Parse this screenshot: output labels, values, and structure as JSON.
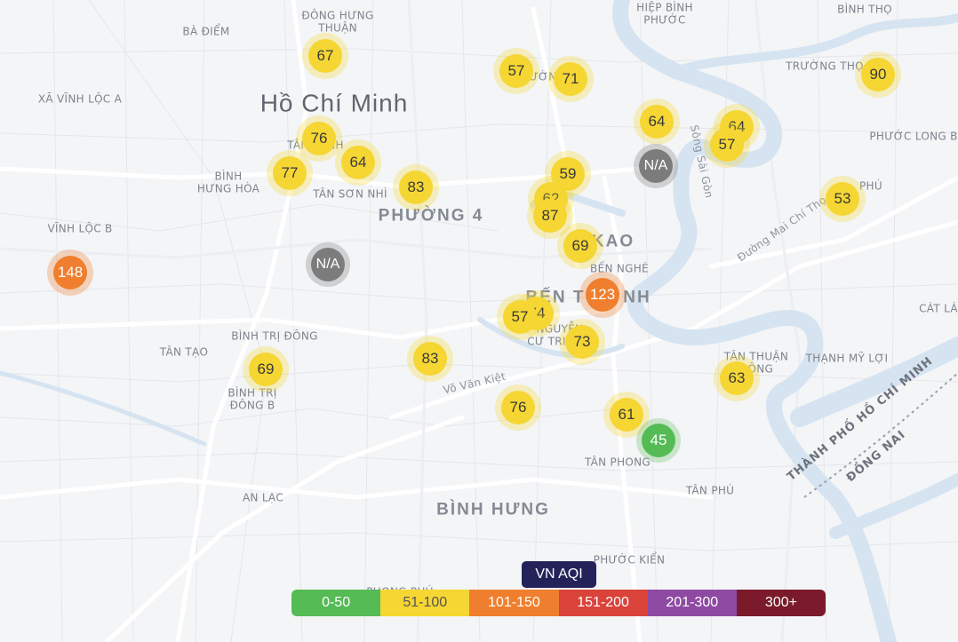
{
  "colors": {
    "good": "#55bb55",
    "moderate": "#f5d633",
    "sensitive": "#ef7f2e",
    "unhealthy": "#d9433a",
    "very_unhealthy": "#8e4aa3",
    "hazardous": "#7a1a2a",
    "na": "#7c7c7c",
    "water": "#d6e4f1",
    "legend_title_bg": "#23235a"
  },
  "place_labels": [
    {
      "text": "ĐÔNG HƯNG",
      "style": "small"
    },
    {
      "text": "THUẬN",
      "style": "small"
    },
    {
      "text": "BÀ ĐIỂM",
      "style": "small"
    },
    {
      "text": "XÃ VĨNH LỘC A",
      "style": "small"
    },
    {
      "text": "Hồ Chí Minh",
      "style": "big"
    },
    {
      "text": "HIỆP BÌNH",
      "style": "small"
    },
    {
      "text": "PHƯỚC",
      "style": "small"
    },
    {
      "text": "BÌNH THỌ",
      "style": "small"
    },
    {
      "text": "TRƯỜNG THỌ",
      "style": "small"
    },
    {
      "text": "PHƯỚC LONG B",
      "style": "small"
    },
    {
      "text": "ƯỜN",
      "style": "small"
    },
    {
      "text": "TÂN ... NH",
      "style": "small"
    },
    {
      "text": "BÌNH",
      "style": "small"
    },
    {
      "text": "HƯNG HÒA",
      "style": "small"
    },
    {
      "text": "TÂN SƠN NHÌ",
      "style": "small"
    },
    {
      "text": "PHƯỜNG 4",
      "style": "district"
    },
    {
      "text": "KAO",
      "style": "district"
    },
    {
      "text": "Sông Sài Gòn",
      "style": "road"
    },
    {
      "text": "PHÚ",
      "style": "small"
    },
    {
      "text": "Đường Mai Chí Thọ",
      "style": "road"
    },
    {
      "text": "VĨNH LỘC B",
      "style": "small"
    },
    {
      "text": "BẾN NGHÉ",
      "style": "small"
    },
    {
      "text": "BẾN T",
      "style": "district"
    },
    {
      "text": "NH",
      "style": "district"
    },
    {
      "text": "CÁT LÁ",
      "style": "small"
    },
    {
      "text": "BÌNH TRỊ ĐÔNG",
      "style": "small"
    },
    {
      "text": "TÂN TẠO",
      "style": "small"
    },
    {
      "text": "NGUYỄN",
      "style": "small"
    },
    {
      "text": "CƯ TRI",
      "style": "small"
    },
    {
      "text": "TÂN THUẬN",
      "style": "small"
    },
    {
      "text": "ĐÔNG",
      "style": "small"
    },
    {
      "text": "THẠNH MỸ LỢI",
      "style": "small"
    },
    {
      "text": "BÌNH TRỊ",
      "style": "small"
    },
    {
      "text": "ĐÔNG B",
      "style": "small"
    },
    {
      "text": "Võ Văn Kiệt",
      "style": "road"
    },
    {
      "text": "THÀNH PHỐ HỒ CHÍ MINH",
      "style": "boundary"
    },
    {
      "text": "ĐỒNG NAI",
      "style": "boundary"
    },
    {
      "text": "TÂN PHONG",
      "style": "small"
    },
    {
      "text": "TÂN PHÚ",
      "style": "small"
    },
    {
      "text": "AN LẠC",
      "style": "small"
    },
    {
      "text": "BÌNH HƯNG",
      "style": "district"
    },
    {
      "text": "PHƯỚC KIỂN",
      "style": "small"
    },
    {
      "text": "PHONG PHÚ",
      "style": "small"
    }
  ],
  "markers": [
    {
      "value": "67",
      "level": "moderate"
    },
    {
      "value": "57",
      "level": "moderate"
    },
    {
      "value": "71",
      "level": "moderate"
    },
    {
      "value": "90",
      "level": "moderate"
    },
    {
      "value": "64",
      "level": "moderate"
    },
    {
      "value": "64",
      "level": "moderate"
    },
    {
      "value": "57",
      "level": "moderate"
    },
    {
      "value": "N/A",
      "level": "na"
    },
    {
      "value": "76",
      "level": "moderate"
    },
    {
      "value": "64",
      "level": "moderate"
    },
    {
      "value": "77",
      "level": "moderate"
    },
    {
      "value": "83",
      "level": "moderate"
    },
    {
      "value": "59",
      "level": "moderate"
    },
    {
      "value": "62",
      "level": "moderate"
    },
    {
      "value": "87",
      "level": "moderate"
    },
    {
      "value": "53",
      "level": "moderate"
    },
    {
      "value": "69",
      "level": "moderate"
    },
    {
      "value": "148",
      "level": "sensitive"
    },
    {
      "value": "N/A",
      "level": "na"
    },
    {
      "value": "123",
      "level": "sensitive"
    },
    {
      "value": "74",
      "level": "moderate"
    },
    {
      "value": "57",
      "level": "moderate"
    },
    {
      "value": "73",
      "level": "moderate"
    },
    {
      "value": "69",
      "level": "moderate"
    },
    {
      "value": "83",
      "level": "moderate"
    },
    {
      "value": "63",
      "level": "moderate"
    },
    {
      "value": "76",
      "level": "moderate"
    },
    {
      "value": "61",
      "level": "moderate"
    },
    {
      "value": "45",
      "level": "good"
    }
  ],
  "legend": {
    "title": "VN AQI",
    "ranges": [
      {
        "label": "0-50",
        "color": "#55bb55",
        "text_color": "#ffffff"
      },
      {
        "label": "51-100",
        "color": "#f5d633",
        "text_color": "#555555"
      },
      {
        "label": "101-150",
        "color": "#ef7f2e",
        "text_color": "#ffffff"
      },
      {
        "label": "151-200",
        "color": "#d9433a",
        "text_color": "#ffffff"
      },
      {
        "label": "201-300",
        "color": "#8e4aa3",
        "text_color": "#ffffff"
      },
      {
        "label": "300+",
        "color": "#7a1a2a",
        "text_color": "#ffffff"
      }
    ]
  }
}
